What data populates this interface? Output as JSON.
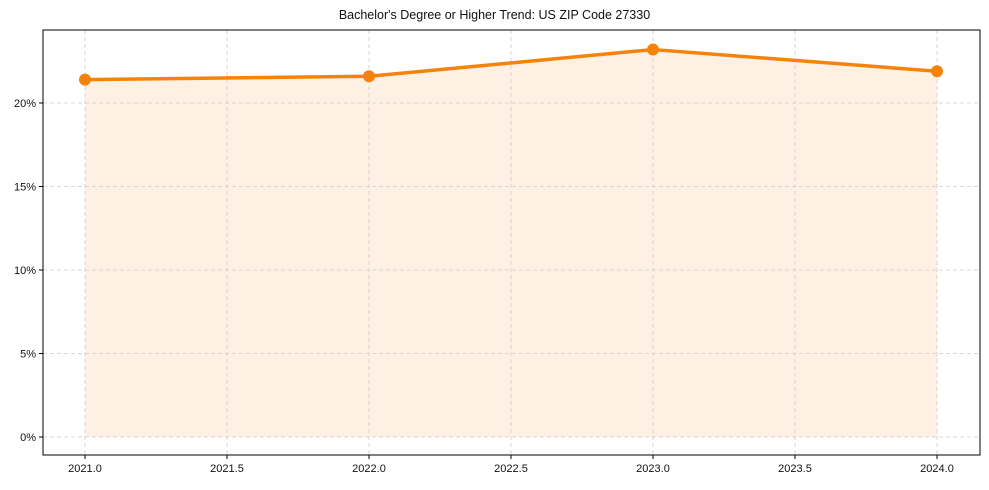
{
  "chart_data": {
    "type": "line",
    "title": "Bachelor's Degree or Higher Trend: US ZIP Code 27330",
    "xlabel": "",
    "ylabel": "",
    "x": [
      2021,
      2022,
      2023,
      2024
    ],
    "series": [
      {
        "name": "Bachelor's Degree or Higher",
        "values": [
          21.4,
          21.6,
          23.2,
          21.9
        ],
        "unit": "%"
      }
    ],
    "xlim": [
      2020.85,
      2024.15
    ],
    "ylim": [
      -1.1,
      24.3
    ],
    "xticks": [
      "2021.0",
      "2021.5",
      "2022.0",
      "2022.5",
      "2023.0",
      "2023.5",
      "2024.0"
    ],
    "yticks": [
      "0%",
      "5%",
      "10%",
      "15%",
      "20%"
    ],
    "grid": true,
    "grid_style": "dashed",
    "fill_under": true,
    "legend": null
  },
  "colors": {
    "line": "#f5830a",
    "marker": "#f5830a",
    "fill": "#fef1e4",
    "grid": "#cccccc",
    "axis": "#000000"
  }
}
